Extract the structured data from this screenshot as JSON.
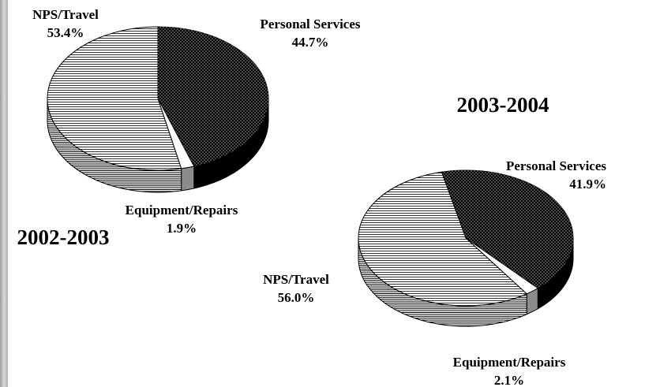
{
  "chart_data": [
    {
      "type": "pie",
      "title": "2002-2003",
      "categories": [
        "Personal Services",
        "Equipment/Repairs",
        "NPS/Travel"
      ],
      "values": [
        44.7,
        1.9,
        53.4
      ],
      "value_labels": [
        "44.7%",
        "1.9%",
        "53.4%"
      ],
      "colors": [
        "#000000",
        "#ffffff",
        "#ffffff"
      ]
    },
    {
      "type": "pie",
      "title": "2003-2004",
      "categories": [
        "Personal Services",
        "Equipment/Repairs",
        "NPS/Travel"
      ],
      "values": [
        41.9,
        2.1,
        56.0
      ],
      "value_labels": [
        "41.9%",
        "2.1%",
        "56.0%"
      ],
      "colors": [
        "#000000",
        "#ffffff",
        "#ffffff"
      ]
    }
  ]
}
